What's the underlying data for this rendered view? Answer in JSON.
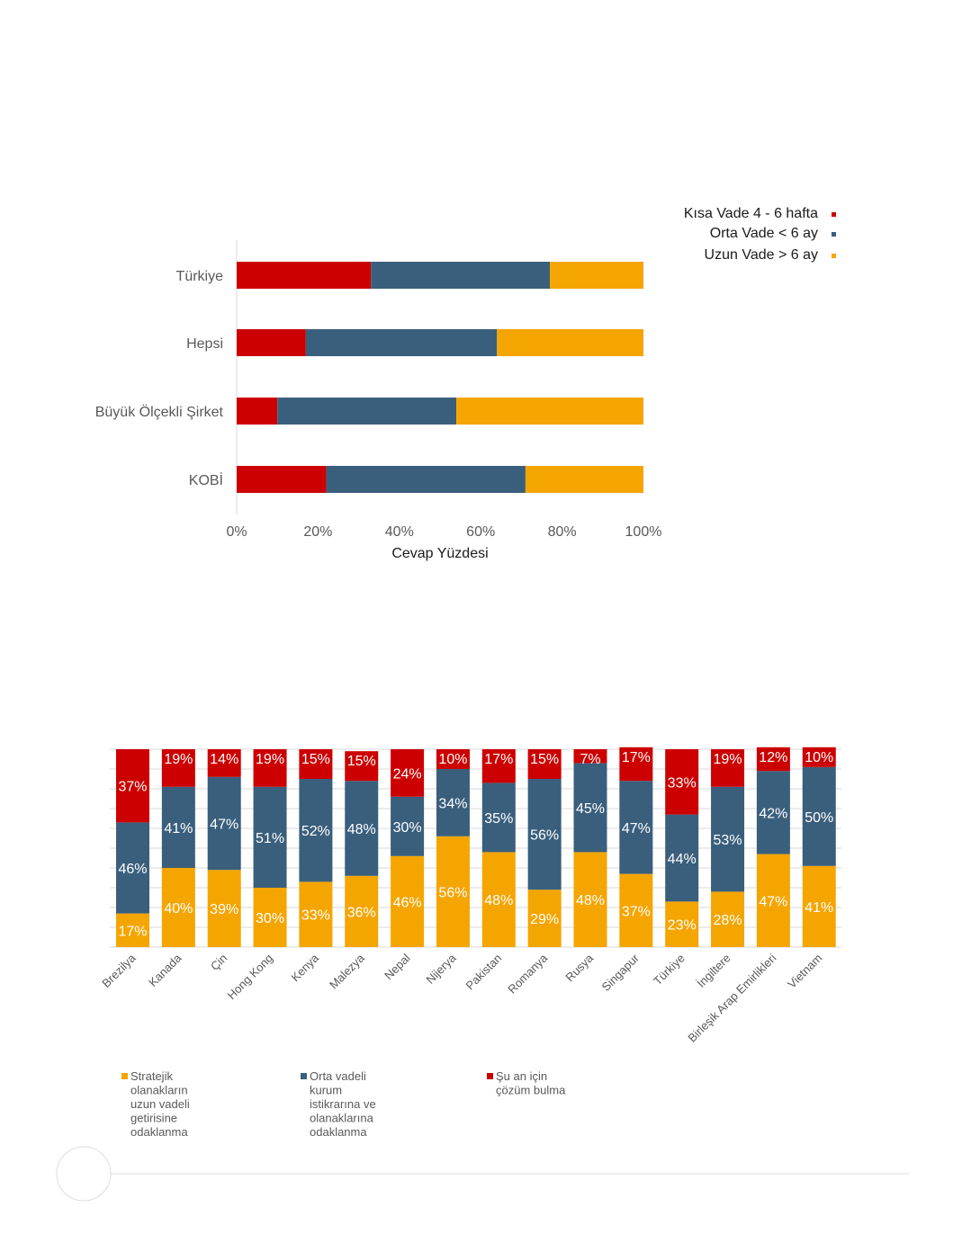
{
  "colors": {
    "short": "#cc0000",
    "mid": "#3a5f7d",
    "long": "#f5a500",
    "axis": "#d9d9d9",
    "grid": "#d9d9d9",
    "text": "#595959"
  },
  "chart_data": [
    {
      "type": "bar",
      "orientation": "horizontal",
      "stacked": true,
      "categories": [
        "Türkiye",
        "Hepsi",
        "Büyük Ölçekli Şirket",
        "KOBİ"
      ],
      "series": [
        {
          "name": "Kısa Vade 4 - 6 hafta",
          "color_key": "short",
          "values": [
            33,
            17,
            10,
            22
          ]
        },
        {
          "name": "Orta Vade < 6 ay",
          "color_key": "mid",
          "values": [
            44,
            47,
            44,
            49
          ]
        },
        {
          "name": "Uzun Vade > 6 ay",
          "color_key": "long",
          "values": [
            23,
            36,
            46,
            29
          ]
        }
      ],
      "xlabel": "Cevap Yüzdesi",
      "xlim": [
        0,
        100
      ],
      "xticks": [
        "0%",
        "20%",
        "40%",
        "60%",
        "80%",
        "100%"
      ],
      "legend_position": "top-right",
      "legend": [
        "Kısa Vade 4 - 6 hafta",
        "Orta Vade < 6 ay",
        "Uzun Vade > 6 ay"
      ],
      "grid": false
    },
    {
      "type": "bar",
      "orientation": "vertical",
      "stacked": true,
      "categories": [
        "Brezilya",
        "Kanada",
        "Çin",
        "Hong Kong",
        "Kenya",
        "Malezya",
        "Nepal",
        "Nijerya",
        "Pakistan",
        "Romanya",
        "Rusya",
        "Singapur",
        "Türkiye",
        "İngiltere",
        "Birleşik Arap Emirlikleri",
        "Vietnam"
      ],
      "series": [
        {
          "name": "Stratejik olanakların uzun vadeli getirisine odaklanma",
          "color_key": "long",
          "values": [
            17,
            40,
            39,
            30,
            33,
            36,
            46,
            56,
            48,
            29,
            48,
            37,
            23,
            28,
            47,
            41
          ],
          "labels": [
            "17%",
            "40%",
            "39%",
            "30%",
            "33%",
            "36%",
            "46%",
            "56%",
            "48%",
            "29%",
            "48%",
            "37%",
            "23%",
            "28%",
            "47%",
            "41%"
          ]
        },
        {
          "name": "Orta vadeli kurum istikrarına ve olanaklarına odaklanma",
          "color_key": "mid",
          "values": [
            46,
            41,
            47,
            51,
            52,
            48,
            30,
            34,
            35,
            56,
            45,
            47,
            44,
            53,
            42,
            50
          ],
          "labels": [
            "46%",
            "41%",
            "47%",
            "51%",
            "52%",
            "48%",
            "30%",
            "34%",
            "35%",
            "56%",
            "45%",
            "47%",
            "44%",
            "53%",
            "42%",
            "50%"
          ]
        },
        {
          "name": "Şu an için çözüm bulma",
          "color_key": "short",
          "values": [
            37,
            19,
            14,
            19,
            15,
            15,
            24,
            10,
            17,
            15,
            7,
            17,
            33,
            19,
            12,
            10
          ],
          "labels": [
            "37%",
            "19%",
            "14%",
            "19%",
            "15%",
            "15%",
            "24%",
            "10%",
            "17%",
            "15%",
            "7%",
            "17%",
            "33%",
            "19%",
            "12%",
            "10%"
          ]
        }
      ],
      "ylim": [
        0,
        100
      ],
      "grid": true,
      "legend_position": "bottom-left",
      "legend": [
        {
          "color_key": "long",
          "lines": [
            "Stratejik",
            "olanakların",
            "uzun vadeli",
            "getirisine",
            "odaklanma"
          ]
        },
        {
          "color_key": "mid",
          "lines": [
            "Orta vadeli",
            "kurum",
            "istikrarına ve",
            "olanaklarına",
            "odaklanma"
          ]
        },
        {
          "color_key": "short",
          "lines": [
            "Şu an için",
            "çözüm bulma"
          ]
        }
      ]
    }
  ]
}
